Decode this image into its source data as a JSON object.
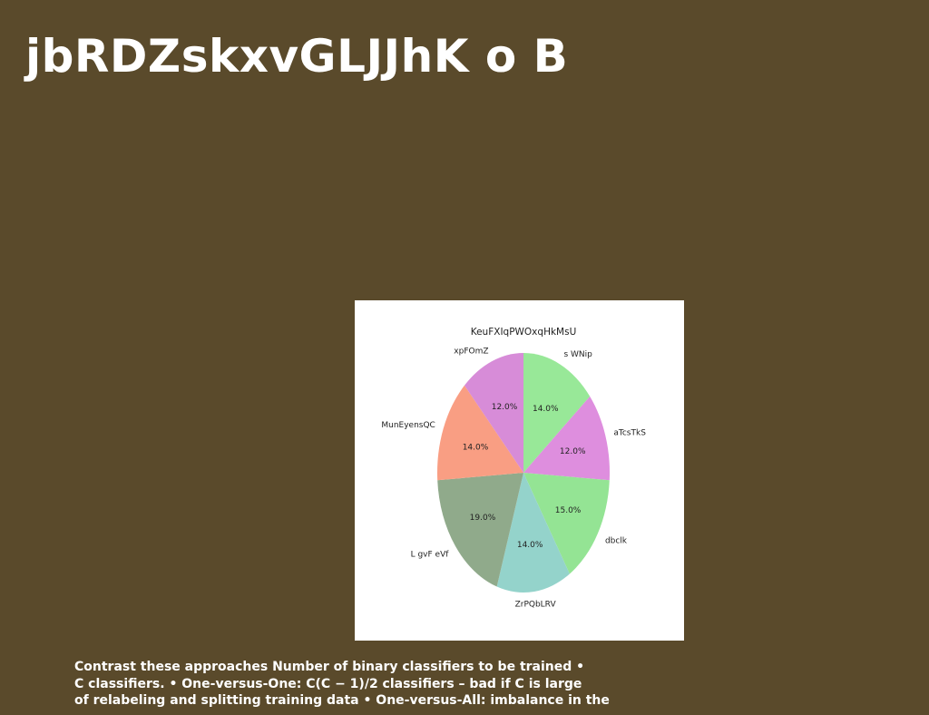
{
  "slide": {
    "title": "jbRDZskxvGLJJhK o B",
    "body_lines": [
      "Contrast these approaches Number of binary classifiers to be trained •",
      "C classifiers. • One-versus-One: C(C − 1)/2 classifiers – bad if C is large",
      "of relabeling and splitting training data • One-versus-All: imbalance in the"
    ]
  },
  "chart_data": {
    "type": "pie",
    "title": "KeuFXIqPWOxqHkMsU",
    "start": "top",
    "direction": "clockwise",
    "slices": [
      {
        "label": "s WNip",
        "value": 14.0,
        "pct_label": "14.0%",
        "color": "#98e898"
      },
      {
        "label": "aTcsTkS",
        "value": 12.0,
        "pct_label": "12.0%",
        "color": "#de8ede"
      },
      {
        "label": "dbclk",
        "value": 15.0,
        "pct_label": "15.0%",
        "color": "#94e494"
      },
      {
        "label": "ZrPQbLRV",
        "value": 14.0,
        "pct_label": "14.0%",
        "color": "#94d3cb"
      },
      {
        "label": "L gvF eVf",
        "value": 19.0,
        "pct_label": "19.0%",
        "color": "#90aa8b"
      },
      {
        "label": "MunEyensQC",
        "value": 14.0,
        "pct_label": "14.0%",
        "color": "#f99e83"
      },
      {
        "label": "xpFOmZ",
        "value": 12.0,
        "pct_label": "12.0%",
        "color": "#d78cd8"
      }
    ]
  }
}
